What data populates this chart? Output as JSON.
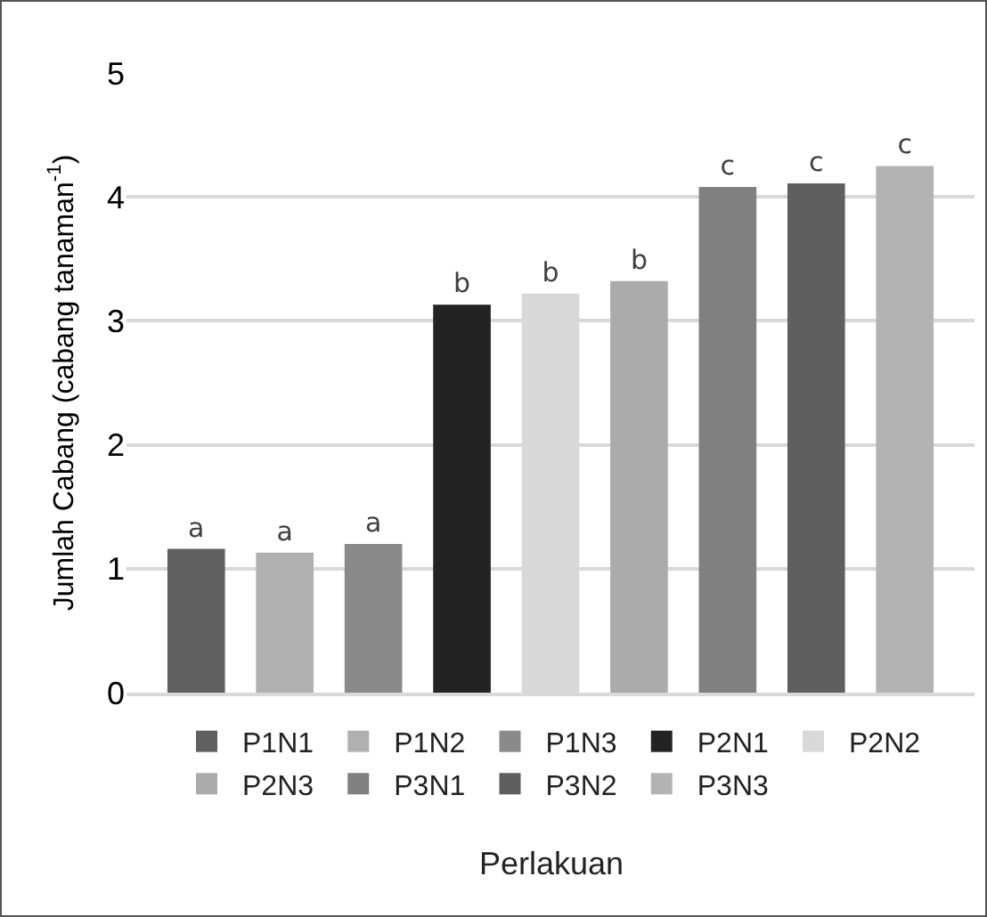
{
  "chart_data": {
    "type": "bar",
    "ylabel": "Jumlah Cabang (cabang tanaman$^{-1}$)",
    "xlabel": "Perlakuan",
    "categories": [
      null
    ],
    "series": [
      {
        "name": "P1N1",
        "color": "#606060",
        "values": [
          1.16
        ],
        "value_labels": [
          "a"
        ]
      },
      {
        "name": "P1N2",
        "color": "#b0b0b0",
        "values": [
          1.13
        ],
        "value_labels": [
          "a"
        ]
      },
      {
        "name": "P1N3",
        "color": "#8a8a8a",
        "values": [
          1.2
        ],
        "value_labels": [
          "a"
        ]
      },
      {
        "name": "P2N1",
        "color": "#232323",
        "values": [
          3.13
        ],
        "value_labels": [
          "b"
        ]
      },
      {
        "name": "P2N2",
        "color": "#d9d9d9",
        "values": [
          3.22
        ],
        "value_labels": [
          "b"
        ]
      },
      {
        "name": "P2N3",
        "color": "#ababab",
        "values": [
          3.32
        ],
        "value_labels": [
          "b"
        ]
      },
      {
        "name": "P3N1",
        "color": "#808080",
        "values": [
          4.08
        ],
        "value_labels": [
          "c"
        ]
      },
      {
        "name": "P3N2",
        "color": "#5f5f5f",
        "values": [
          4.11
        ],
        "value_labels": [
          "c"
        ]
      },
      {
        "name": "P3N3",
        "color": "#b3b3b3",
        "values": [
          4.25
        ],
        "value_labels": [
          "c"
        ]
      }
    ],
    "ylim": [
      0,
      5
    ],
    "yticks": [
      0,
      1,
      2,
      3,
      4,
      5
    ],
    "grid": "y",
    "legend": "bottom"
  }
}
